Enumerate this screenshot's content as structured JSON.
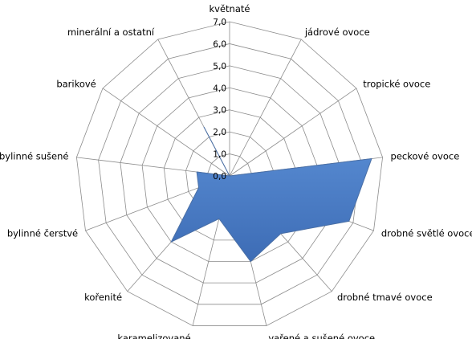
{
  "chart_data": {
    "type": "radar",
    "categories": [
      "květnaté",
      "jádrové ovoce",
      "tropické ovoce",
      "peckové ovoce",
      "drobné světlé ovoce",
      "drobné tmavé ovoce",
      "vařené a sušené ovoce",
      "karamelizované",
      "kořenité",
      "bylinné čerstvé",
      "bylinné sušené",
      "barikové",
      "minerální a ostatní"
    ],
    "series": [
      {
        "values": [
          0.0,
          0.0,
          0.0,
          6.5,
          5.8,
          3.5,
          4.0,
          2.0,
          4.0,
          1.5,
          1.5,
          0.0,
          2.5
        ],
        "color": "#4a7ec5"
      }
    ],
    "rlim": [
      0,
      7
    ],
    "ticks": [
      "0,0",
      "1,0",
      "2,0",
      "3,0",
      "4,0",
      "5,0",
      "6,0",
      "7,0"
    ],
    "grid": true,
    "legend": "none"
  }
}
